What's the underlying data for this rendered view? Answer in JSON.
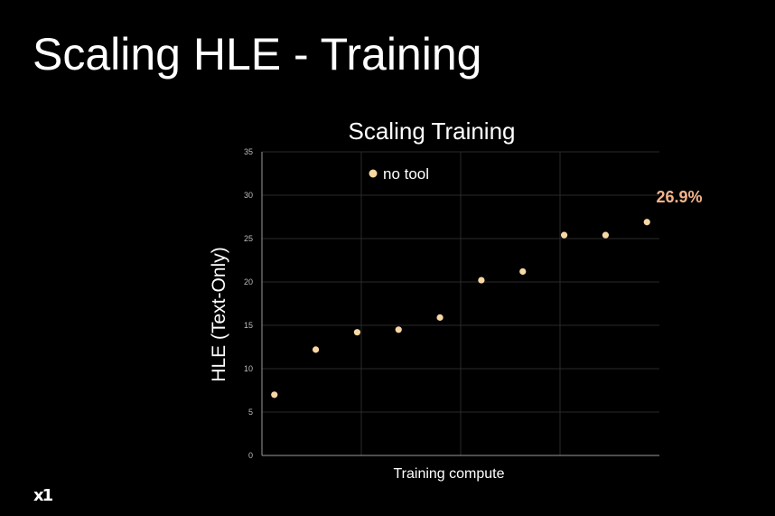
{
  "slide": {
    "title": "Scaling HLE - Training",
    "logo_text": "x1"
  },
  "colors": {
    "background": "#000000",
    "text": "#ffffff",
    "point": "#f7d7a3",
    "highlight_label": "#f2b48a",
    "grid": "#2a2a2a",
    "axis": "#9a9a9a",
    "tick_text": "#bdbdbd"
  },
  "chart_data": {
    "type": "scatter",
    "title": "Scaling Training",
    "xlabel": "Training compute",
    "ylabel": "HLE (Text-Only)",
    "ylim": [
      0,
      35
    ],
    "yticks": [
      0,
      5,
      10,
      15,
      20,
      25,
      30,
      35
    ],
    "xlim": [
      0,
      9
    ],
    "grid": true,
    "legend_position": "top-left",
    "series": [
      {
        "name": "no tool",
        "x": [
          0,
          1,
          2,
          3,
          4,
          5,
          6,
          7,
          8,
          9
        ],
        "y": [
          7.0,
          12.2,
          14.2,
          14.5,
          15.9,
          20.2,
          21.2,
          25.4,
          25.4,
          26.9
        ]
      }
    ],
    "annotations": [
      {
        "text": "26.9%",
        "point_index": 9
      }
    ]
  }
}
